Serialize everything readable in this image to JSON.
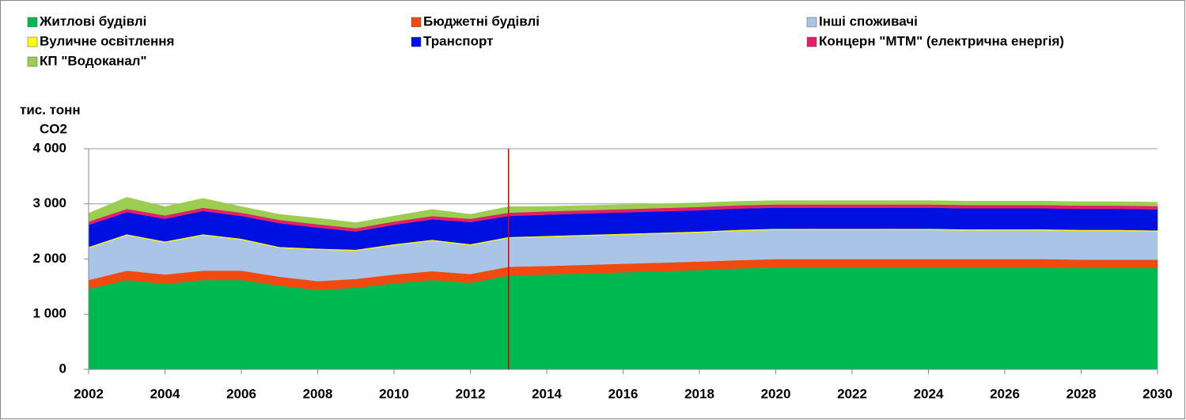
{
  "chart_data": {
    "type": "area_stacked",
    "legend": "top",
    "grid": true,
    "y_label_lines": [
      "тис. тонн",
      "CO2"
    ],
    "x": [
      2002,
      2003,
      2004,
      2005,
      2006,
      2007,
      2008,
      2009,
      2010,
      2011,
      2012,
      2013,
      2014,
      2015,
      2016,
      2017,
      2018,
      2019,
      2020,
      2021,
      2022,
      2023,
      2024,
      2025,
      2026,
      2027,
      2028,
      2029,
      2030
    ],
    "xlim": [
      2002,
      2030
    ],
    "xticks": [
      2002,
      2004,
      2006,
      2008,
      2010,
      2012,
      2014,
      2016,
      2018,
      2020,
      2022,
      2024,
      2026,
      2028,
      2030
    ],
    "ylim": [
      0,
      4000
    ],
    "yticks": [
      0,
      {
        "value": 1000,
        "label": "1 000"
      },
      {
        "value": 2000,
        "label": "2 000"
      },
      {
        "value": 3000,
        "label": "3 000"
      },
      {
        "value": 4000,
        "label": "4 000"
      }
    ],
    "marker_x": 2013,
    "marker_color": "#e00000",
    "series": [
      {
        "name": "Житлові будівлі",
        "color": "#00b850",
        "values": [
          1460,
          1620,
          1550,
          1620,
          1620,
          1520,
          1440,
          1480,
          1560,
          1620,
          1570,
          1700,
          1720,
          1740,
          1760,
          1780,
          1800,
          1830,
          1850,
          1850,
          1850,
          1850,
          1850,
          1850,
          1850,
          1850,
          1840,
          1840,
          1840
        ]
      },
      {
        "name": "Бюджетні будівлі",
        "color": "#f04a10",
        "values": [
          160,
          170,
          170,
          170,
          170,
          160,
          160,
          160,
          160,
          160,
          160,
          160,
          155,
          155,
          155,
          155,
          155,
          150,
          150,
          150,
          150,
          150,
          150,
          150,
          150,
          150,
          150,
          150,
          150
        ]
      },
      {
        "name": "Інші споживачі",
        "color": "#a9c4e6",
        "values": [
          580,
          640,
          580,
          640,
          560,
          520,
          570,
          510,
          530,
          550,
          520,
          520,
          525,
          525,
          525,
          525,
          525,
          530,
          530,
          530,
          530,
          530,
          530,
          520,
          520,
          520,
          520,
          520,
          510
        ]
      },
      {
        "name": "Вуличне освітлення",
        "color": "#ffff00",
        "values": [
          20,
          20,
          20,
          20,
          20,
          20,
          20,
          20,
          20,
          20,
          20,
          20,
          20,
          20,
          20,
          20,
          20,
          20,
          20,
          20,
          20,
          20,
          20,
          20,
          20,
          20,
          20,
          20,
          20
        ]
      },
      {
        "name": "Транспорт",
        "color": "#0010e0",
        "values": [
          400,
          400,
          410,
          420,
          410,
          430,
          380,
          330,
          350,
          370,
          400,
          380,
          385,
          385,
          385,
          385,
          385,
          385,
          380,
          380,
          380,
          380,
          380,
          380,
          380,
          380,
          380,
          380,
          380
        ]
      },
      {
        "name": "Концерн \"МТМ\" (електрична енергія)",
        "color": "#e0206a",
        "values": [
          60,
          60,
          60,
          60,
          60,
          60,
          60,
          60,
          60,
          60,
          60,
          60,
          60,
          60,
          60,
          60,
          60,
          60,
          60,
          60,
          60,
          60,
          60,
          60,
          60,
          60,
          60,
          60,
          60
        ]
      },
      {
        "name": "КП \"Водоканал\"",
        "color": "#9acd50",
        "values": [
          150,
          210,
          160,
          170,
          110,
          100,
          110,
          100,
          100,
          120,
          80,
          110,
          90,
          85,
          80,
          75,
          75,
          70,
          70,
          70,
          70,
          70,
          70,
          70,
          70,
          70,
          70,
          70,
          70
        ]
      }
    ]
  }
}
